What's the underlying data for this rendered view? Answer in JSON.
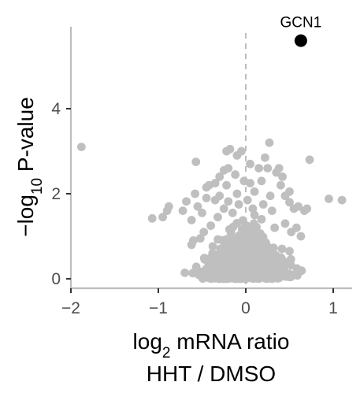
{
  "chart_data": {
    "type": "scatter",
    "x_axis": {
      "label_prefix": "log",
      "label_subscript": "2",
      "label_suffix": " mRNA ratio",
      "label_line2": "HHT / DMSO",
      "range": [
        -2,
        1.2
      ],
      "ticks": [
        -2,
        -1,
        0,
        1
      ],
      "tick_labels": [
        "−2",
        "−1",
        "0",
        "1"
      ]
    },
    "y_axis": {
      "label_prefix": "−log",
      "label_subscript": "10",
      "label_suffix": " P-value",
      "range": [
        0,
        5.9
      ],
      "ticks": [
        0,
        2,
        4
      ],
      "tick_labels": [
        "0",
        "2",
        "4"
      ]
    },
    "reference_line": {
      "x": 0,
      "style": "dashed",
      "color": "#bdbdbd"
    },
    "grid": false,
    "colors": {
      "background_points": "#bfbfbf",
      "highlight": "#000000",
      "axis": "#bdbdbd"
    },
    "highlight": {
      "name": "GCN1",
      "x": 0.63,
      "y": 5.6
    },
    "outlier_points": [
      [
        -1.88,
        3.1
      ],
      [
        -1.07,
        1.42
      ],
      [
        -0.95,
        1.45
      ],
      [
        -0.9,
        1.6
      ],
      [
        -0.88,
        1.7
      ],
      [
        -0.72,
        1.6
      ],
      [
        -0.68,
        1.82
      ],
      [
        -0.62,
        1.38
      ],
      [
        -0.58,
        2.0
      ],
      [
        -0.55,
        1.7
      ],
      [
        -0.5,
        1.55
      ],
      [
        -0.45,
        1.9
      ],
      [
        -0.42,
        2.2
      ],
      [
        -0.6,
        0.9
      ],
      [
        -0.62,
        0.8
      ],
      [
        -0.57,
        2.75
      ],
      [
        -0.45,
        2.15
      ],
      [
        -0.35,
        2.25
      ],
      [
        -0.3,
        2.4
      ],
      [
        -0.22,
        2.2
      ],
      [
        -0.2,
        2.6
      ],
      [
        -0.25,
        2.55
      ],
      [
        -0.18,
        3.05
      ],
      [
        -0.1,
        2.9
      ],
      [
        -0.05,
        3.0
      ],
      [
        -0.12,
        2.45
      ],
      [
        -0.3,
        1.95
      ],
      [
        -0.2,
        1.82
      ],
      [
        -0.1,
        2.0
      ],
      [
        -0.02,
        2.3
      ],
      [
        0.05,
        2.25
      ],
      [
        0.1,
        2.05
      ],
      [
        0.18,
        2.3
      ],
      [
        0.25,
        2.6
      ],
      [
        0.22,
        2.85
      ],
      [
        0.27,
        3.2
      ],
      [
        0.35,
        2.5
      ],
      [
        0.38,
        2.6
      ],
      [
        0.42,
        2.4
      ],
      [
        0.4,
        2.2
      ],
      [
        0.45,
        1.95
      ],
      [
        0.5,
        1.8
      ],
      [
        0.5,
        2.05
      ],
      [
        0.55,
        1.65
      ],
      [
        0.6,
        1.7
      ],
      [
        0.67,
        1.6
      ],
      [
        0.7,
        1.65
      ],
      [
        0.73,
        2.8
      ],
      [
        0.95,
        1.88
      ],
      [
        1.1,
        1.85
      ],
      [
        0.2,
        1.75
      ],
      [
        0.3,
        1.6
      ],
      [
        0.1,
        1.5
      ],
      [
        0.18,
        1.4
      ],
      [
        0.33,
        1.2
      ],
      [
        0.45,
        1.3
      ],
      [
        0.52,
        1.1
      ],
      [
        0.58,
        1.2
      ],
      [
        0.63,
        1.0
      ],
      [
        -0.4,
        1.25
      ],
      [
        -0.48,
        1.1
      ],
      [
        -0.52,
        0.95
      ],
      [
        -0.32,
        1.45
      ],
      [
        -0.25,
        1.65
      ],
      [
        -0.15,
        1.55
      ],
      [
        -0.08,
        1.75
      ],
      [
        0.02,
        1.85
      ],
      [
        0.08,
        1.65
      ],
      [
        -0.38,
        0.6
      ],
      [
        0.5,
        0.65
      ],
      [
        -0.22,
        3.0
      ],
      [
        0.05,
        2.7
      ],
      [
        0.15,
        2.6
      ],
      [
        -0.35,
        1.85
      ],
      [
        0.28,
        1.95
      ]
    ],
    "cloud": {
      "count": 850,
      "seed": 7
    }
  }
}
